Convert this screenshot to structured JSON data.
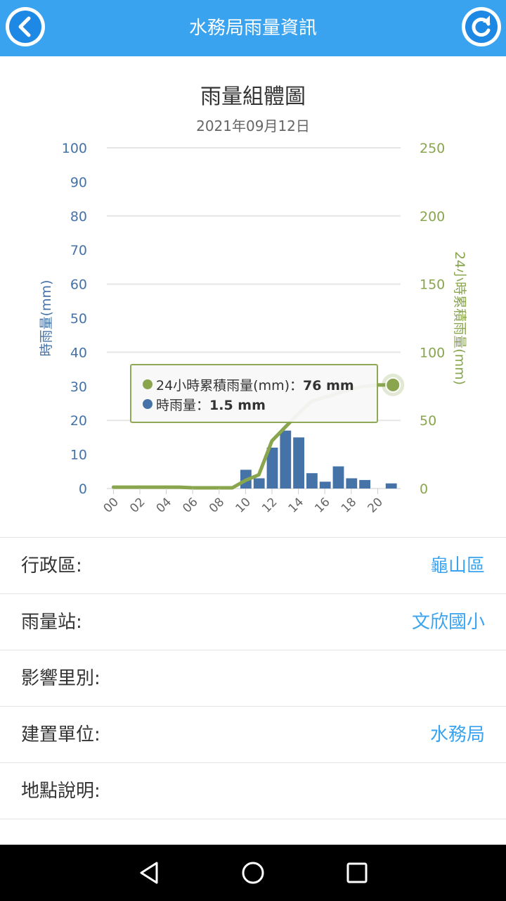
{
  "header": {
    "title": "水務局雨量資訊",
    "back_icon": "chevron-left-icon",
    "refresh_icon": "refresh-icon",
    "bar_color": "#3aa3f0"
  },
  "chart_data": {
    "type": "bar",
    "title": "雨量組體圖",
    "subtitle": "2021年09月12日",
    "categories": [
      "00",
      "01",
      "02",
      "03",
      "04",
      "05",
      "06",
      "07",
      "08",
      "09",
      "10",
      "11",
      "12",
      "13",
      "14",
      "15",
      "16",
      "17",
      "18",
      "19",
      "20",
      "21"
    ],
    "x_tick_labels": [
      "00",
      "02",
      "04",
      "06",
      "08",
      "10",
      "12",
      "14",
      "16",
      "18",
      "20"
    ],
    "series": [
      {
        "name": "時雨量",
        "axis": "left",
        "type": "bar",
        "color": "#4572a7",
        "values": [
          0,
          0,
          0,
          0,
          0,
          0,
          0,
          0,
          0,
          0,
          5.5,
          3,
          12,
          17,
          15,
          4.5,
          2,
          6.5,
          3,
          2.5,
          0,
          1.5
        ]
      },
      {
        "name": "24小時累積雨量",
        "axis": "right",
        "type": "line",
        "color": "#89a54e",
        "values": [
          1,
          1,
          1,
          1,
          1,
          1,
          0.5,
          0.5,
          0.5,
          0.5,
          6,
          10,
          35,
          45,
          55,
          64,
          67,
          70,
          73,
          75,
          76,
          76
        ]
      }
    ],
    "y_left": {
      "label": "時雨量(mm)",
      "range": [
        0,
        100
      ],
      "ticks": [
        0,
        10,
        20,
        30,
        40,
        50,
        60,
        70,
        80,
        90,
        100
      ]
    },
    "y_right": {
      "label": "24小時累積雨量(mm)",
      "range": [
        0,
        250
      ],
      "ticks": [
        0,
        50,
        100,
        150,
        200,
        250
      ]
    },
    "grid": true,
    "tooltip": {
      "line1_label": "24小時累積雨量(mm)：",
      "line1_value": "76 mm",
      "line2_label": "時雨量：",
      "line2_value": "1.5 mm"
    }
  },
  "info": {
    "rows": [
      {
        "label": "行政區:",
        "value": "龜山區"
      },
      {
        "label": "雨量站:",
        "value": "文欣國小"
      },
      {
        "label": "影響里別:",
        "value": ""
      },
      {
        "label": "建置單位:",
        "value": "水務局"
      },
      {
        "label": "地點說明:",
        "value": ""
      }
    ]
  },
  "navbar": {
    "back_icon": "triangle-back-icon",
    "home_icon": "circle-home-icon",
    "recents_icon": "square-recents-icon"
  }
}
